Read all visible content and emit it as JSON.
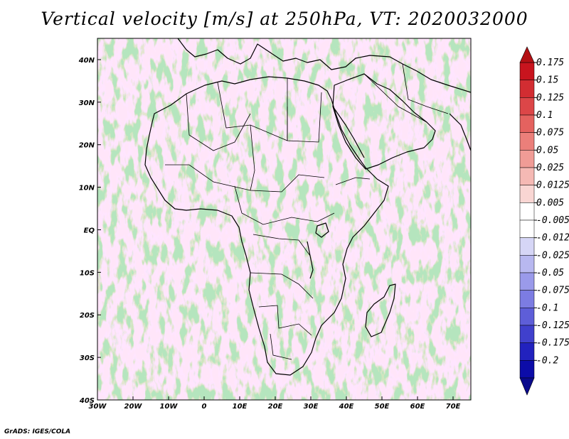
{
  "title": "Vertical velocity [m/s] at 250hPa, VT: 2020032000",
  "footer": "GrADS: IGES/COLA",
  "map": {
    "lon_range": [
      -30,
      75
    ],
    "lat_range": [
      -40,
      45
    ],
    "x_ticks": [
      "30W",
      "20W",
      "10W",
      "0",
      "10E",
      "20E",
      "30E",
      "40E",
      "50E",
      "60E",
      "70E"
    ],
    "y_ticks": [
      "40N",
      "30N",
      "20N",
      "10N",
      "EQ",
      "10S",
      "20S",
      "30S",
      "40S"
    ]
  },
  "colorbar": {
    "labels": [
      "0.175",
      "0.15",
      "0.125",
      "0.1",
      "0.075",
      "0.05",
      "0.025",
      "0.0125",
      "0.005",
      "-0.005",
      "-0.0125",
      "-0.025",
      "-0.05",
      "-0.075",
      "-0.1",
      "-0.125",
      "-0.175",
      "-0.2"
    ],
    "colors": [
      "#c8141e",
      "#d22d32",
      "#dc4648",
      "#e4625f",
      "#eb7f7a",
      "#f09c96",
      "#f5b9b4",
      "#f9d6d3",
      "#ffffff",
      "#ffffff",
      "#d6d6f6",
      "#b8b8f0",
      "#9a9aea",
      "#7c7ce2",
      "#5e5ed8",
      "#4040cc",
      "#2222be",
      "#0c0ca8"
    ]
  }
}
